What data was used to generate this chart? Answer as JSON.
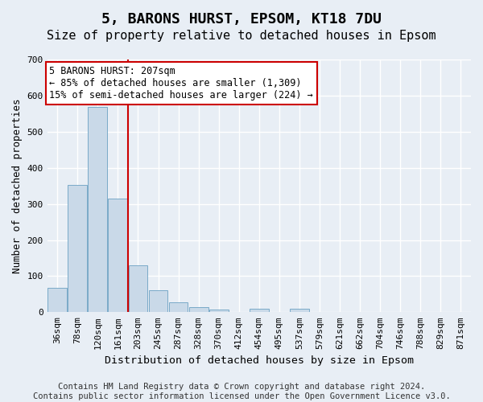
{
  "title": "5, BARONS HURST, EPSOM, KT18 7DU",
  "subtitle": "Size of property relative to detached houses in Epsom",
  "xlabel": "Distribution of detached houses by size in Epsom",
  "ylabel": "Number of detached properties",
  "bins": [
    "36sqm",
    "78sqm",
    "120sqm",
    "161sqm",
    "203sqm",
    "245sqm",
    "287sqm",
    "328sqm",
    "370sqm",
    "412sqm",
    "454sqm",
    "495sqm",
    "537sqm",
    "579sqm",
    "621sqm",
    "662sqm",
    "704sqm",
    "746sqm",
    "788sqm",
    "829sqm",
    "871sqm"
  ],
  "bar_values": [
    68,
    352,
    568,
    315,
    130,
    60,
    27,
    15,
    7,
    0,
    10,
    0,
    10,
    0,
    0,
    0,
    0,
    0,
    0,
    0,
    0
  ],
  "bar_color": "#c9d9e8",
  "bar_edge_color": "#7aaac8",
  "vline_x_index": 4,
  "vline_color": "#cc0000",
  "annotation_line1": "5 BARONS HURST: 207sqm",
  "annotation_line2": "← 85% of detached houses are smaller (1,309)",
  "annotation_line3": "15% of semi-detached houses are larger (224) →",
  "annotation_box_color": "#ffffff",
  "annotation_box_edge_color": "#cc0000",
  "ylim": [
    0,
    700
  ],
  "yticks": [
    0,
    100,
    200,
    300,
    400,
    500,
    600,
    700
  ],
  "footer_line1": "Contains HM Land Registry data © Crown copyright and database right 2024.",
  "footer_line2": "Contains public sector information licensed under the Open Government Licence v3.0.",
  "background_color": "#e8eef5",
  "plot_background_color": "#e8eef5",
  "grid_color": "#ffffff",
  "title_fontsize": 13,
  "subtitle_fontsize": 11,
  "axis_label_fontsize": 9,
  "tick_fontsize": 8,
  "footer_fontsize": 7.5
}
